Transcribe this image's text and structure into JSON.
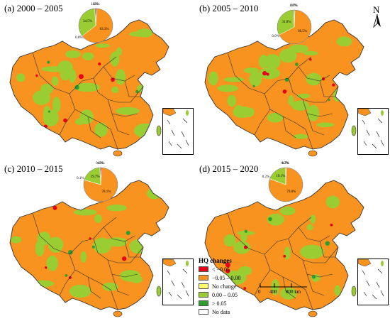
{
  "colors": {
    "lt_neg005": "#e8001a",
    "neg005_000": "#f7931e",
    "no_change": "#ffff66",
    "c000_005": "#9acd32",
    "gt_005": "#2e9e2e",
    "no_data": "#ffffff",
    "border": "#333333"
  },
  "panels": [
    {
      "id": "a",
      "title": "(a) 2000 – 2005",
      "pie": [
        {
          "label": "1.2%",
          "value": 1.2,
          "class": "lt_neg005"
        },
        {
          "label": "63.3%",
          "value": 63.3,
          "class": "neg005_000"
        },
        {
          "label": "0.0%",
          "value": 0.0,
          "class": "no_change"
        },
        {
          "label": "34.5%",
          "value": 34.5,
          "class": "c000_005"
        },
        {
          "label": "1.0%",
          "value": 1.0,
          "class": "gt_005"
        }
      ]
    },
    {
      "id": "b",
      "title": "(b) 2005 – 2010",
      "pie": [
        {
          "label": "0.7%",
          "value": 0.7,
          "class": "lt_neg005"
        },
        {
          "label": "66.5%",
          "value": 66.5,
          "class": "neg005_000"
        },
        {
          "label": "0.0%",
          "value": 0.0,
          "class": "no_change"
        },
        {
          "label": "31.8%",
          "value": 31.8,
          "class": "c000_005"
        },
        {
          "label": "1.0%",
          "value": 1.0,
          "class": "gt_005"
        }
      ]
    },
    {
      "id": "c",
      "title": "(c) 2010 – 2015",
      "pie": [
        {
          "label": "1.3%",
          "value": 1.3,
          "class": "lt_neg005"
        },
        {
          "label": "78.1%",
          "value": 78.1,
          "class": "neg005_000"
        },
        {
          "label": "0.1%",
          "value": 0.1,
          "class": "no_change"
        },
        {
          "label": "19.7%",
          "value": 19.7,
          "class": "c000_005"
        },
        {
          "label": "0.8%",
          "value": 0.8,
          "class": "gt_005"
        }
      ]
    },
    {
      "id": "d",
      "title": "(d) 2015 – 2020",
      "pie": [
        {
          "label": "0.7%",
          "value": 0.7,
          "class": "lt_neg005"
        },
        {
          "label": "79.8%",
          "value": 79.8,
          "class": "neg005_000"
        },
        {
          "label": "0.2%",
          "value": 0.2,
          "class": "no_change"
        },
        {
          "label": "19.1%",
          "value": 19.1,
          "class": "c000_005"
        },
        {
          "label": "0.2%",
          "value": 0.2,
          "class": "gt_005"
        }
      ]
    }
  ],
  "legend": {
    "title": "HQ changes",
    "items": [
      {
        "label": "< −0.05",
        "class": "lt_neg005"
      },
      {
        "label": "−0.05 – 0.00",
        "class": "neg005_000"
      },
      {
        "label": "No change",
        "class": "no_change"
      },
      {
        "label": "0.00 – 0.05",
        "class": "c000_005"
      },
      {
        "label": "> 0.05",
        "class": "gt_005"
      },
      {
        "label": "No data",
        "class": "no_data"
      }
    ]
  },
  "north": "N",
  "scale": {
    "ticks": [
      "0",
      "400",
      "800 km"
    ]
  }
}
